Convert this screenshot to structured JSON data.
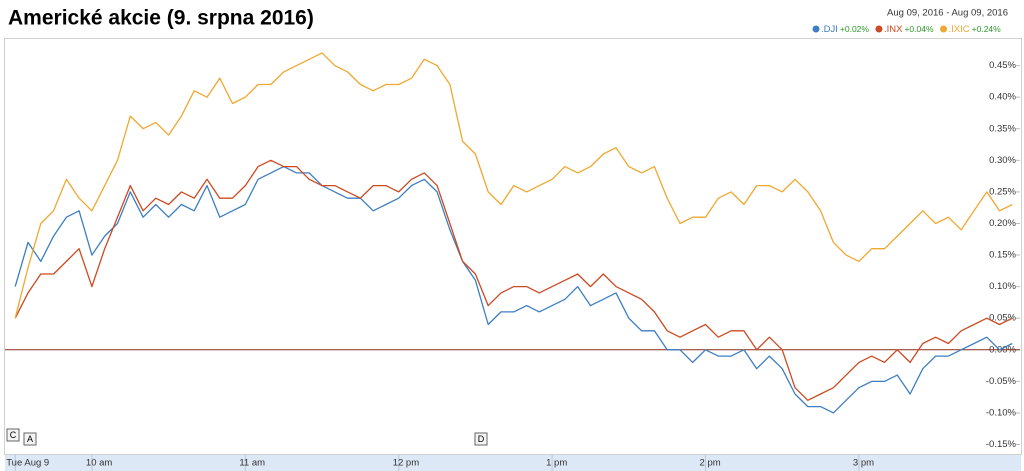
{
  "chart_data": {
    "type": "line",
    "title": "Americké akcie (9. srpna 2016)",
    "date_range": "Aug 09, 2016  -  Aug 09, 2016",
    "flags": [
      "C",
      "A",
      "D"
    ],
    "x": [
      570,
      575,
      580,
      585,
      590,
      595,
      600,
      605,
      610,
      615,
      620,
      625,
      630,
      635,
      640,
      645,
      650,
      655,
      660,
      665,
      670,
      675,
      680,
      685,
      690,
      695,
      700,
      705,
      710,
      715,
      720,
      725,
      730,
      735,
      740,
      745,
      750,
      755,
      760,
      765,
      770,
      775,
      780,
      785,
      790,
      795,
      800,
      805,
      810,
      815,
      820,
      825,
      830,
      835,
      840,
      845,
      850,
      855,
      860,
      865,
      870,
      875,
      880,
      885,
      890,
      895,
      900,
      905,
      910,
      915,
      920,
      925,
      930,
      935,
      940,
      945,
      950,
      955,
      960
    ],
    "xlim": [
      566,
      963
    ],
    "xticks": [
      {
        "value": 570,
        "label": "Tue Aug 9"
      },
      {
        "value": 600,
        "label": "10 am"
      },
      {
        "value": 660,
        "label": "11 am"
      },
      {
        "value": 720,
        "label": "12 pm"
      },
      {
        "value": 780,
        "label": "1 pm"
      },
      {
        "value": 840,
        "label": "2 pm"
      },
      {
        "value": 900,
        "label": "3 pm"
      }
    ],
    "ylim": [
      -0.165,
      0.5
    ],
    "yticks": [
      {
        "value": 0.45,
        "label": "0.45%"
      },
      {
        "value": 0.4,
        "label": "0.40%"
      },
      {
        "value": 0.35,
        "label": "0.35%"
      },
      {
        "value": 0.3,
        "label": "0.30%"
      },
      {
        "value": 0.25,
        "label": "0.25%"
      },
      {
        "value": 0.2,
        "label": "0.20%"
      },
      {
        "value": 0.15,
        "label": "0.15%"
      },
      {
        "value": 0.1,
        "label": "0.10%"
      },
      {
        "value": 0.05,
        "label": "0.05%"
      },
      {
        "value": 0,
        "label": "0.00%"
      },
      {
        "value": -0.05,
        "label": "-0.05%"
      },
      {
        "value": -0.1,
        "label": "-0.10%"
      },
      {
        "value": -0.15,
        "label": "-0.15%"
      }
    ],
    "zero_line_color": "#8b2a1a",
    "series": [
      {
        "name": ".DJI",
        "change": "+0.02%",
        "color": "#3d7fc2",
        "values": [
          0.1,
          0.17,
          0.14,
          0.18,
          0.21,
          0.22,
          0.15,
          0.18,
          0.2,
          0.25,
          0.21,
          0.23,
          0.21,
          0.23,
          0.22,
          0.26,
          0.21,
          0.22,
          0.23,
          0.27,
          0.28,
          0.29,
          0.28,
          0.28,
          0.26,
          0.25,
          0.24,
          0.24,
          0.22,
          0.23,
          0.24,
          0.26,
          0.27,
          0.25,
          0.19,
          0.14,
          0.11,
          0.04,
          0.06,
          0.06,
          0.07,
          0.06,
          0.07,
          0.08,
          0.1,
          0.07,
          0.08,
          0.09,
          0.05,
          0.03,
          0.03,
          0.0,
          0.0,
          -0.02,
          0.0,
          -0.01,
          -0.01,
          0.0,
          -0.03,
          -0.01,
          -0.03,
          -0.07,
          -0.09,
          -0.09,
          -0.1,
          -0.08,
          -0.06,
          -0.05,
          -0.05,
          -0.04,
          -0.07,
          -0.03,
          -0.01,
          -0.01,
          0.0,
          0.01,
          0.02,
          0.0,
          0.01
        ]
      },
      {
        "name": ".INX",
        "change": "+0.04%",
        "color": "#cc4a22",
        "values": [
          0.05,
          0.09,
          0.12,
          0.12,
          0.14,
          0.16,
          0.1,
          0.16,
          0.21,
          0.26,
          0.22,
          0.24,
          0.23,
          0.25,
          0.24,
          0.27,
          0.24,
          0.24,
          0.26,
          0.29,
          0.3,
          0.29,
          0.29,
          0.27,
          0.26,
          0.26,
          0.25,
          0.24,
          0.26,
          0.26,
          0.25,
          0.27,
          0.28,
          0.26,
          0.2,
          0.14,
          0.12,
          0.07,
          0.09,
          0.1,
          0.1,
          0.09,
          0.1,
          0.11,
          0.12,
          0.1,
          0.12,
          0.1,
          0.09,
          0.08,
          0.06,
          0.03,
          0.02,
          0.03,
          0.04,
          0.02,
          0.03,
          0.03,
          0.0,
          0.02,
          0.0,
          -0.06,
          -0.08,
          -0.07,
          -0.06,
          -0.04,
          -0.02,
          -0.01,
          -0.02,
          0.0,
          -0.02,
          0.01,
          0.02,
          0.01,
          0.03,
          0.04,
          0.05,
          0.04,
          0.05
        ]
      },
      {
        "name": ".IXIC",
        "change": "+0.24%",
        "color": "#f0a830",
        "values": [
          0.05,
          0.13,
          0.2,
          0.22,
          0.27,
          0.24,
          0.22,
          0.26,
          0.3,
          0.37,
          0.35,
          0.36,
          0.34,
          0.37,
          0.41,
          0.4,
          0.43,
          0.39,
          0.4,
          0.42,
          0.42,
          0.44,
          0.45,
          0.46,
          0.47,
          0.45,
          0.44,
          0.42,
          0.41,
          0.42,
          0.42,
          0.43,
          0.46,
          0.45,
          0.42,
          0.33,
          0.31,
          0.25,
          0.23,
          0.26,
          0.25,
          0.26,
          0.27,
          0.29,
          0.28,
          0.29,
          0.31,
          0.32,
          0.29,
          0.28,
          0.29,
          0.24,
          0.2,
          0.21,
          0.21,
          0.24,
          0.25,
          0.23,
          0.26,
          0.26,
          0.25,
          0.27,
          0.25,
          0.22,
          0.17,
          0.15,
          0.14,
          0.16,
          0.16,
          0.18,
          0.2,
          0.22,
          0.2,
          0.21,
          0.19,
          0.22,
          0.25,
          0.22,
          0.23
        ]
      }
    ],
    "change_color": "#2a9a2a"
  }
}
